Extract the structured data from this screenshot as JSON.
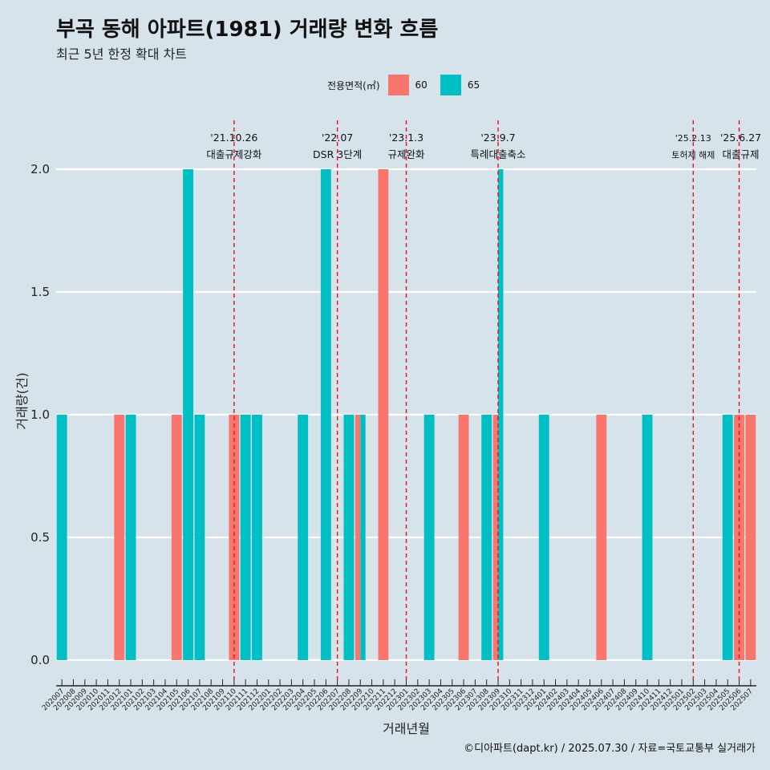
{
  "title": "부곡 동해 아파트(1981) 거래량 변화 흐름",
  "subtitle": "최근 5년 한정 확대 차트",
  "legend": {
    "title": "전용면적(㎡)",
    "items": [
      {
        "label": "60",
        "color": "#F8766D"
      },
      {
        "label": "65",
        "color": "#00BFC4"
      }
    ]
  },
  "caption": "©디아파트(dapt.kr) / 2025.07.30 / 자료=국토교통부 실거래가",
  "chart_data": {
    "type": "bar",
    "title": "부곡 동해 아파트(1981) 거래량 변화 흐름",
    "xlabel": "거래년월",
    "ylabel": "거래량(건)",
    "ylim": [
      0,
      2.2
    ],
    "yticks": [
      0.0,
      0.5,
      1.0,
      1.5,
      2.0
    ],
    "ytick_labels": [
      "0.0",
      "0.5",
      "1.0",
      "1.5",
      "2.0"
    ],
    "categories": [
      "202007",
      "202008",
      "202009",
      "202010",
      "202011",
      "202012",
      "202101",
      "202102",
      "202103",
      "202104",
      "202105",
      "202106",
      "202107",
      "202108",
      "202109",
      "202110",
      "202111",
      "202112",
      "202201",
      "202202",
      "202203",
      "202204",
      "202205",
      "202206",
      "202207",
      "202208",
      "202209",
      "202210",
      "202211",
      "202212",
      "202301",
      "202302",
      "202303",
      "202304",
      "202305",
      "202306",
      "202307",
      "202308",
      "202309",
      "202310",
      "202311",
      "202312",
      "202401",
      "202402",
      "202403",
      "202404",
      "202405",
      "202406",
      "202407",
      "202408",
      "202409",
      "202410",
      "202411",
      "202412",
      "202501",
      "202502",
      "202503",
      "202504",
      "202505",
      "202506",
      "202507"
    ],
    "series": [
      {
        "name": "60",
        "color": "#F8766D",
        "values": [
          0,
          0,
          0,
          0,
          0,
          1,
          0,
          0,
          0,
          0,
          1,
          0,
          0,
          0,
          0,
          1,
          0,
          0,
          0,
          0,
          0,
          0,
          0,
          0,
          0,
          0,
          1,
          0,
          2,
          0,
          0,
          0,
          0,
          0,
          0,
          1,
          0,
          0,
          1,
          0,
          0,
          0,
          0,
          0,
          0,
          0,
          0,
          1,
          0,
          0,
          0,
          0,
          0,
          0,
          0,
          0,
          0,
          0,
          0,
          1,
          1
        ]
      },
      {
        "name": "65",
        "color": "#00BFC4",
        "values": [
          1,
          0,
          0,
          0,
          0,
          0,
          1,
          0,
          0,
          0,
          0,
          2,
          1,
          0,
          0,
          0,
          1,
          1,
          0,
          0,
          0,
          1,
          0,
          2,
          0,
          1,
          1,
          0,
          0,
          0,
          0,
          0,
          1,
          0,
          0,
          0,
          0,
          1,
          2,
          0,
          0,
          0,
          1,
          0,
          0,
          0,
          0,
          0,
          0,
          0,
          0,
          1,
          0,
          0,
          0,
          0,
          0,
          0,
          1,
          0,
          0
        ]
      }
    ],
    "events": [
      {
        "date": "'21.10.26",
        "label": "대출규제강화",
        "category": "202110"
      },
      {
        "date": "'22.07",
        "label": "DSR 3단계",
        "category": "202207"
      },
      {
        "date": "'23.1.3",
        "label": "규제완화",
        "category": "202301"
      },
      {
        "date": "'23.9.7",
        "label": "특례대출축소",
        "category": "202309"
      },
      {
        "date": "'25.2.13",
        "label": "토허제 해제",
        "category": "202502"
      },
      {
        "date": "'25.6.27",
        "label": "대출규제",
        "category": "202506"
      }
    ]
  }
}
